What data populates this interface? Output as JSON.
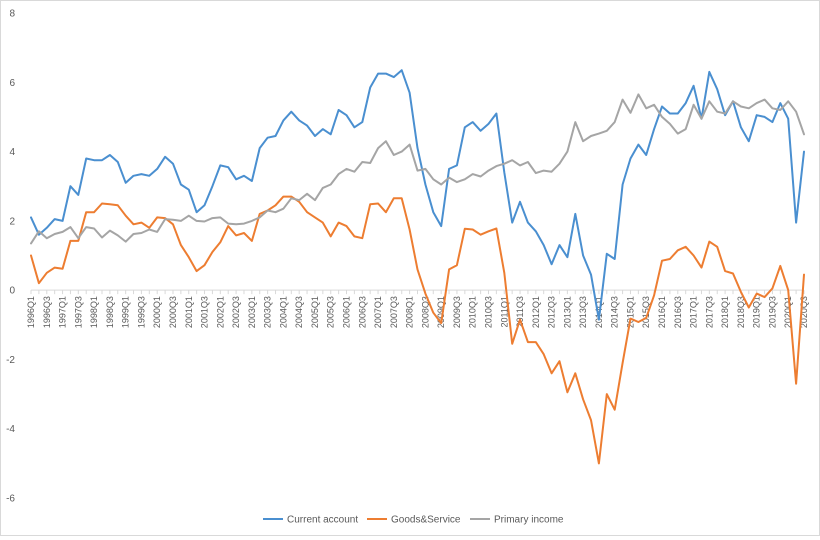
{
  "chart_data": {
    "type": "line",
    "title": "",
    "xlabel": "",
    "ylabel": "",
    "ylim": [
      -6,
      8
    ],
    "yticks": [
      -6,
      -4,
      -2,
      0,
      2,
      4,
      6,
      8
    ],
    "grid": false,
    "legend_position": "bottom",
    "x_tick_labels": [
      "1996Q1",
      "1996Q3",
      "1997Q1",
      "1997Q3",
      "1998Q1",
      "1998Q3",
      "1999Q1",
      "1999Q3",
      "2000Q1",
      "2000Q3",
      "2001Q1",
      "2001Q3",
      "2002Q1",
      "2002Q3",
      "2003Q1",
      "2003Q3",
      "2004Q1",
      "2004Q3",
      "2005Q1",
      "2005Q3",
      "2006Q1",
      "2006Q3",
      "2007Q1",
      "2007Q3",
      "2008Q1",
      "2008Q3",
      "2009Q1",
      "2009Q3",
      "2010Q1",
      "2010Q3",
      "2011Q1",
      "2011Q3",
      "2012Q1",
      "2012Q3",
      "2013Q1",
      "2013Q3",
      "2014Q1",
      "2014Q3",
      "2015Q1",
      "2015Q3",
      "2016Q1",
      "2016Q3",
      "2017Q1",
      "2017Q3",
      "2018Q1",
      "2018Q3",
      "2019Q1",
      "2019Q3",
      "2020Q1",
      "2020Q3"
    ],
    "series": [
      {
        "name": "Current account",
        "color": "#4a8fd0",
        "values": [
          2.1,
          1.6,
          1.8,
          2.05,
          2.0,
          3.0,
          2.75,
          3.8,
          3.75,
          3.75,
          3.9,
          3.7,
          3.1,
          3.3,
          3.35,
          3.3,
          3.5,
          3.85,
          3.65,
          3.05,
          2.9,
          2.25,
          2.45,
          3.0,
          3.6,
          3.55,
          3.2,
          3.3,
          3.15,
          4.1,
          4.4,
          4.45,
          4.9,
          5.15,
          4.9,
          4.75,
          4.45,
          4.65,
          4.5,
          5.2,
          5.05,
          4.7,
          4.85,
          5.85,
          6.25,
          6.25,
          6.15,
          6.35,
          5.7,
          4.1,
          3.05,
          2.25,
          1.85,
          3.5,
          3.6,
          4.7,
          4.85,
          4.6,
          4.8,
          5.1,
          3.4,
          1.95,
          2.55,
          1.95,
          1.7,
          1.3,
          0.75,
          1.3,
          0.95,
          2.2,
          1.0,
          0.45,
          -0.85,
          1.05,
          0.9,
          3.05,
          3.8,
          4.2,
          3.9,
          4.65,
          5.3,
          5.1,
          5.1,
          5.4,
          5.9,
          4.95,
          6.3,
          5.8,
          5.05,
          5.45,
          4.7,
          4.3,
          5.05,
          5.0,
          4.85,
          5.4,
          4.95,
          1.95,
          4.0
        ]
      },
      {
        "name": "Goods&Service",
        "color": "#ed7d31",
        "values": [
          1.0,
          0.2,
          0.5,
          0.65,
          0.62,
          1.42,
          1.42,
          2.25,
          2.25,
          2.5,
          2.48,
          2.45,
          2.15,
          1.9,
          1.95,
          1.8,
          2.1,
          2.08,
          1.9,
          1.3,
          0.95,
          0.55,
          0.72,
          1.1,
          1.38,
          1.85,
          1.58,
          1.65,
          1.42,
          2.2,
          2.3,
          2.45,
          2.7,
          2.7,
          2.55,
          2.25,
          2.1,
          1.95,
          1.55,
          1.95,
          1.85,
          1.55,
          1.5,
          2.48,
          2.5,
          2.25,
          2.65,
          2.65,
          1.75,
          0.6,
          -0.1,
          -0.65,
          -0.95,
          0.6,
          0.72,
          1.77,
          1.75,
          1.6,
          1.7,
          1.78,
          0.5,
          -1.55,
          -0.85,
          -1.5,
          -1.5,
          -1.85,
          -2.4,
          -2.05,
          -2.95,
          -2.4,
          -3.15,
          -3.75,
          -5.0,
          -3.0,
          -3.45,
          -2.1,
          -0.82,
          -0.92,
          -0.8,
          -0.15,
          0.85,
          0.9,
          1.15,
          1.25,
          1.0,
          0.65,
          1.4,
          1.25,
          0.55,
          0.48,
          -0.05,
          -0.5,
          -0.1,
          -0.2,
          0.05,
          0.7,
          0.0,
          -2.7,
          0.45
        ]
      },
      {
        "name": "Primary income",
        "color": "#a5a5a5",
        "values": [
          1.35,
          1.7,
          1.5,
          1.62,
          1.68,
          1.82,
          1.5,
          1.82,
          1.78,
          1.52,
          1.72,
          1.58,
          1.4,
          1.62,
          1.65,
          1.75,
          1.68,
          2.05,
          2.03,
          2.0,
          2.15,
          2.0,
          1.98,
          2.08,
          2.1,
          1.92,
          1.9,
          1.92,
          2.0,
          2.1,
          2.3,
          2.25,
          2.35,
          2.65,
          2.6,
          2.78,
          2.6,
          2.95,
          3.05,
          3.35,
          3.5,
          3.42,
          3.7,
          3.67,
          4.1,
          4.3,
          3.9,
          4.0,
          4.2,
          3.45,
          3.5,
          3.2,
          3.05,
          3.25,
          3.12,
          3.2,
          3.35,
          3.28,
          3.45,
          3.58,
          3.65,
          3.75,
          3.6,
          3.7,
          3.38,
          3.45,
          3.42,
          3.65,
          4.0,
          4.85,
          4.3,
          4.45,
          4.52,
          4.6,
          4.85,
          5.5,
          5.12,
          5.65,
          5.25,
          5.35,
          5.0,
          4.8,
          4.52,
          4.65,
          5.35,
          4.95,
          5.45,
          5.15,
          5.1,
          5.45,
          5.3,
          5.25,
          5.4,
          5.5,
          5.25,
          5.2,
          5.45,
          5.15,
          4.5
        ]
      }
    ]
  }
}
